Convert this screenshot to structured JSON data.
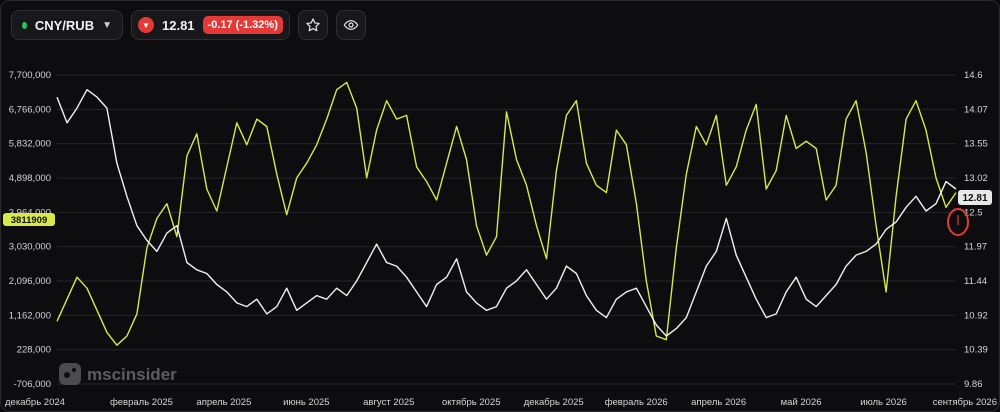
{
  "toolbar": {
    "symbol": "CNY/RUB",
    "status_color": "#22c55e",
    "price": "12.81",
    "change": "-0.17 (-1.32%)",
    "down_icon": "triangle-down-icon",
    "favorite_icon": "star-icon",
    "watch_icon": "eye-icon"
  },
  "watermark": {
    "brand": "mscinsider",
    "logo_icon": "msc-logo-icon"
  },
  "chart_data": {
    "type": "line",
    "left_axis": {
      "ticks": [
        "7,700,000",
        "6,766,000",
        "5,832,000",
        "4,898,000",
        "3,964,000",
        "3,030,000",
        "2,096,000",
        "1,162,000",
        "228,000",
        "-706,000"
      ],
      "range": [
        -706000,
        7700000
      ],
      "current_label": "3811909"
    },
    "right_axis": {
      "ticks": [
        "14.6",
        "14.07",
        "13.55",
        "13.02",
        "12.5",
        "11.97",
        "11.44",
        "10.92",
        "10.39",
        "9.86"
      ],
      "range": [
        9.86,
        14.6
      ],
      "current_label": "12.81"
    },
    "x_labels": [
      "декабрь 2024",
      "февраль 2025",
      "апрель 2025",
      "июнь 2025",
      "август 2025",
      "октябрь 2025",
      "декабрь 2025",
      "февраль 2026",
      "апрель 2026",
      "май 2026",
      "июль 2026",
      "сентябрь 2026"
    ],
    "grid": true,
    "series": [
      {
        "axis": "left",
        "color": "#d7e84a",
        "values": [
          1000000,
          1600000,
          2200000,
          1900000,
          1300000,
          700000,
          350000,
          600000,
          1200000,
          3000000,
          3800000,
          4200000,
          3300000,
          5500000,
          6100000,
          4600000,
          4000000,
          5200000,
          6400000,
          5800000,
          6500000,
          6300000,
          5000000,
          3900000,
          4900000,
          5300000,
          5800000,
          6500000,
          7300000,
          7500000,
          6800000,
          4900000,
          6200000,
          7000000,
          6500000,
          6600000,
          5200000,
          4800000,
          4300000,
          5300000,
          6300000,
          5400000,
          3600000,
          2800000,
          3300000,
          6700000,
          5400000,
          4700000,
          3600000,
          2700000,
          5100000,
          6600000,
          7000000,
          5300000,
          4700000,
          4500000,
          6200000,
          5800000,
          4200000,
          2100000,
          600000,
          500000,
          3000000,
          5000000,
          6300000,
          5800000,
          6600000,
          4700000,
          5200000,
          6200000,
          6900000,
          4600000,
          5100000,
          6600000,
          5700000,
          5900000,
          5700000,
          4300000,
          4700000,
          6500000,
          7000000,
          5600000,
          3600000,
          1800000,
          4400000,
          6500000,
          7000000,
          6200000,
          4900000,
          4100000,
          4500000
        ]
      },
      {
        "axis": "left",
        "color": "#f0f0f0",
        "values": [
          7100000,
          6400000,
          6800000,
          7300000,
          7100000,
          6800000,
          5300000,
          4400000,
          3600000,
          3200000,
          2900000,
          3400000,
          3600000,
          2600000,
          2400000,
          2300000,
          2000000,
          1800000,
          1500000,
          1400000,
          1600000,
          1200000,
          1400000,
          1900000,
          1300000,
          1500000,
          1700000,
          1600000,
          1900000,
          1700000,
          2100000,
          2600000,
          3100000,
          2600000,
          2500000,
          2200000,
          1800000,
          1400000,
          2000000,
          2200000,
          2700000,
          1800000,
          1500000,
          1300000,
          1400000,
          1900000,
          2100000,
          2400000,
          2000000,
          1600000,
          1900000,
          2500000,
          2300000,
          1700000,
          1300000,
          1100000,
          1600000,
          1800000,
          1900000,
          1400000,
          900000,
          600000,
          800000,
          1100000,
          1800000,
          2500000,
          2900000,
          3800000,
          2800000,
          2200000,
          1600000,
          1100000,
          1200000,
          1800000,
          2200000,
          1600000,
          1400000,
          1700000,
          2000000,
          2500000,
          2800000,
          2900000,
          3100000,
          3500000,
          3700000,
          4100000,
          4400000,
          4000000,
          4200000,
          4800000,
          4600000
        ]
      }
    ]
  }
}
